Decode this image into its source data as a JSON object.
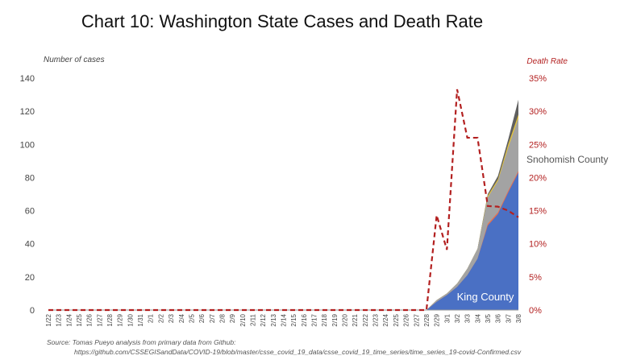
{
  "chart_data": {
    "type": "area",
    "title": "Chart 10: Washington State Cases and Death Rate",
    "ylabel": "Number of cases",
    "y2label": "Death Rate",
    "ylim": [
      0,
      140
    ],
    "y2lim": [
      0,
      35
    ],
    "yticks": [
      "0",
      "20",
      "40",
      "60",
      "80",
      "100",
      "120",
      "140"
    ],
    "y2ticks": [
      "0%",
      "5%",
      "10%",
      "15%",
      "20%",
      "25%",
      "30%",
      "35%"
    ],
    "categories": [
      "1/22",
      "1/23",
      "1/24",
      "1/25",
      "1/26",
      "1/27",
      "1/28",
      "1/29",
      "1/30",
      "1/31",
      "2/1",
      "2/2",
      "2/3",
      "2/4",
      "2/5",
      "2/6",
      "2/7",
      "2/8",
      "2/9",
      "2/10",
      "2/11",
      "2/12",
      "2/13",
      "2/14",
      "2/15",
      "2/16",
      "2/17",
      "2/18",
      "2/19",
      "2/20",
      "2/21",
      "2/22",
      "2/23",
      "2/24",
      "2/25",
      "2/26",
      "2/27",
      "2/28",
      "2/29",
      "3/1",
      "3/2",
      "3/3",
      "3/4",
      "3/5",
      "3/6",
      "3/7",
      "3/8"
    ],
    "series": [
      {
        "name": "King County",
        "kind": "area",
        "axis": "left",
        "color": "#4a70c4",
        "values": [
          0,
          0,
          0,
          0,
          0,
          0,
          0,
          0,
          0,
          0,
          0,
          0,
          0,
          0,
          0,
          0,
          0,
          0,
          0,
          0,
          0,
          0,
          0,
          0,
          0,
          0,
          0,
          0,
          0,
          0,
          0,
          0,
          0,
          0,
          0,
          0,
          0,
          0,
          5,
          9,
          14,
          21,
          31,
          51,
          58,
          71,
          83
        ]
      },
      {
        "name": "",
        "kind": "area",
        "axis": "left",
        "color": "#e8704f",
        "values": [
          0,
          0,
          0,
          0,
          0,
          0,
          0,
          0,
          0,
          0,
          0,
          0,
          0,
          0,
          0,
          0,
          0,
          0,
          0,
          0,
          0,
          0,
          0,
          0,
          0,
          0,
          0,
          0,
          0,
          0,
          0,
          0,
          0,
          0,
          0,
          0,
          0,
          0,
          5,
          9,
          14,
          21,
          31,
          52,
          59,
          72,
          84
        ]
      },
      {
        "name": "Snohomish County",
        "kind": "area",
        "axis": "left",
        "color": "#a3a3a3",
        "values": [
          0,
          0,
          0,
          0,
          0,
          0,
          0,
          0,
          0,
          0,
          0,
          0,
          0,
          0,
          0,
          0,
          0,
          0,
          0,
          0,
          0,
          0,
          0,
          0,
          0,
          0,
          0,
          0,
          0,
          0,
          0,
          0,
          0,
          0,
          0,
          0,
          0,
          0,
          6,
          10,
          16,
          25,
          37,
          68,
          78,
          98,
          116
        ]
      },
      {
        "name": "",
        "kind": "area",
        "axis": "left",
        "color": "#e6c53a",
        "values": [
          0,
          0,
          0,
          0,
          0,
          0,
          0,
          0,
          0,
          0,
          0,
          0,
          0,
          0,
          0,
          0,
          0,
          0,
          0,
          0,
          0,
          0,
          0,
          0,
          0,
          0,
          0,
          0,
          0,
          0,
          0,
          0,
          0,
          0,
          0,
          0,
          0,
          0,
          6,
          10,
          16,
          25,
          37,
          69,
          79,
          100,
          118
        ]
      },
      {
        "name": "",
        "kind": "area",
        "axis": "left",
        "color": "#5f5f5f",
        "values": [
          0,
          0,
          0,
          0,
          0,
          0,
          0,
          0,
          0,
          0,
          0,
          0,
          0,
          0,
          0,
          0,
          0,
          0,
          0,
          0,
          0,
          0,
          0,
          0,
          0,
          0,
          0,
          0,
          0,
          0,
          0,
          0,
          0,
          0,
          0,
          0,
          0,
          0,
          6,
          10,
          16,
          25,
          37,
          70,
          81,
          103,
          127
        ]
      },
      {
        "name": "Death Rate",
        "kind": "line",
        "axis": "right",
        "color": "#b32020",
        "values": [
          0,
          0,
          0,
          0,
          0,
          0,
          0,
          0,
          0,
          0,
          0,
          0,
          0,
          0,
          0,
          0,
          0,
          0,
          0,
          0,
          0,
          0,
          0,
          0,
          0,
          0,
          0,
          0,
          0,
          0,
          0,
          0,
          0,
          0,
          0,
          0,
          0,
          0,
          14.3,
          9.1,
          33.3,
          26,
          26,
          15.7,
          15.6,
          15,
          14
        ]
      }
    ],
    "annotations": [
      "King County",
      "Snohomish County"
    ],
    "legend": "none",
    "grid": false
  },
  "source_line1": "Source: Tomas Pueyo analysis from primary data from Github:",
  "source_line2": "https://github.com/CSSEGISandData/COVID-19/blob/master/csse_covid_19_data/csse_covid_19_time_series/time_series_19-covid-Confirmed.csv"
}
